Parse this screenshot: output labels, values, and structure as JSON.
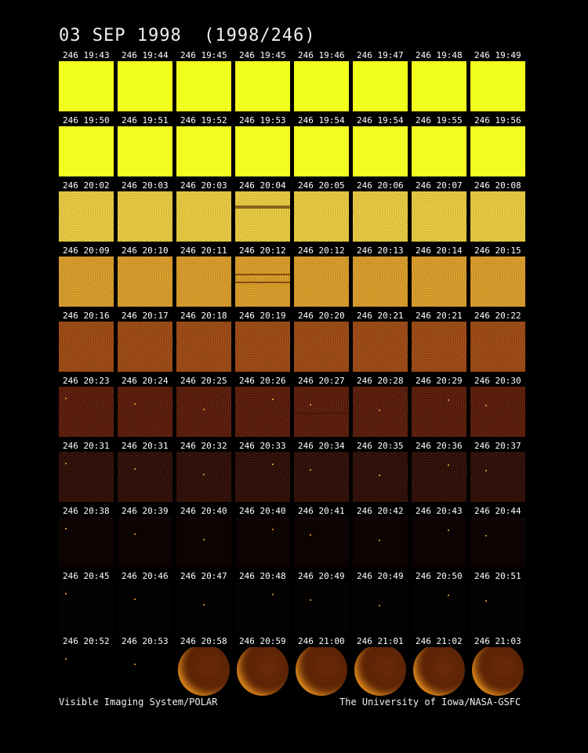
{
  "title": "03 SEP 1998  (1998/246)",
  "frames": [
    [
      "246 19:43",
      "246 19:44",
      "246 19:45",
      "246 19:45",
      "246 19:46",
      "246 19:47",
      "246 19:48",
      "246 19:49"
    ],
    [
      "246 19:50",
      "246 19:51",
      "246 19:52",
      "246 19:53",
      "246 19:54",
      "246 19:54",
      "246 19:55",
      "246 19:56"
    ],
    [
      "246 20:02",
      "246 20:03",
      "246 20:03",
      "246 20:04",
      "246 20:05",
      "246 20:06",
      "246 20:07",
      "246 20:08"
    ],
    [
      "246 20:09",
      "246 20:10",
      "246 20:11",
      "246 20:12",
      "246 20:12",
      "246 20:13",
      "246 20:14",
      "246 20:15"
    ],
    [
      "246 20:16",
      "246 20:17",
      "246 20:18",
      "246 20:19",
      "246 20:20",
      "246 20:21",
      "246 20:21",
      "246 20:22"
    ],
    [
      "246 20:23",
      "246 20:24",
      "246 20:25",
      "246 20:26",
      "246 20:27",
      "246 20:28",
      "246 20:29",
      "246 20:30"
    ],
    [
      "246 20:31",
      "246 20:31",
      "246 20:32",
      "246 20:33",
      "246 20:34",
      "246 20:35",
      "246 20:36",
      "246 20:37"
    ],
    [
      "246 20:38",
      "246 20:39",
      "246 20:40",
      "246 20:40",
      "246 20:41",
      "246 20:42",
      "246 20:43",
      "246 20:44"
    ],
    [
      "246 20:45",
      "246 20:46",
      "246 20:47",
      "246 20:48",
      "246 20:49",
      "246 20:49",
      "246 20:50",
      "246 20:51"
    ],
    [
      "246 20:52",
      "246 20:53",
      "246 20:58",
      "246 20:59",
      "246 21:00",
      "246 21:01",
      "246 21:02",
      "246 21:03"
    ]
  ],
  "row_colors": [
    "#f0ff1c",
    "#f2fb22",
    "#f0d040",
    "#e0a028",
    "#a04a12",
    "#5a1a08",
    "#2e0c04",
    "#0c0302",
    "#040101",
    "#000000"
  ],
  "footer": {
    "left": "Visible Imaging System/POLAR",
    "right": "The University of Iowa/NASA-GSFC"
  }
}
